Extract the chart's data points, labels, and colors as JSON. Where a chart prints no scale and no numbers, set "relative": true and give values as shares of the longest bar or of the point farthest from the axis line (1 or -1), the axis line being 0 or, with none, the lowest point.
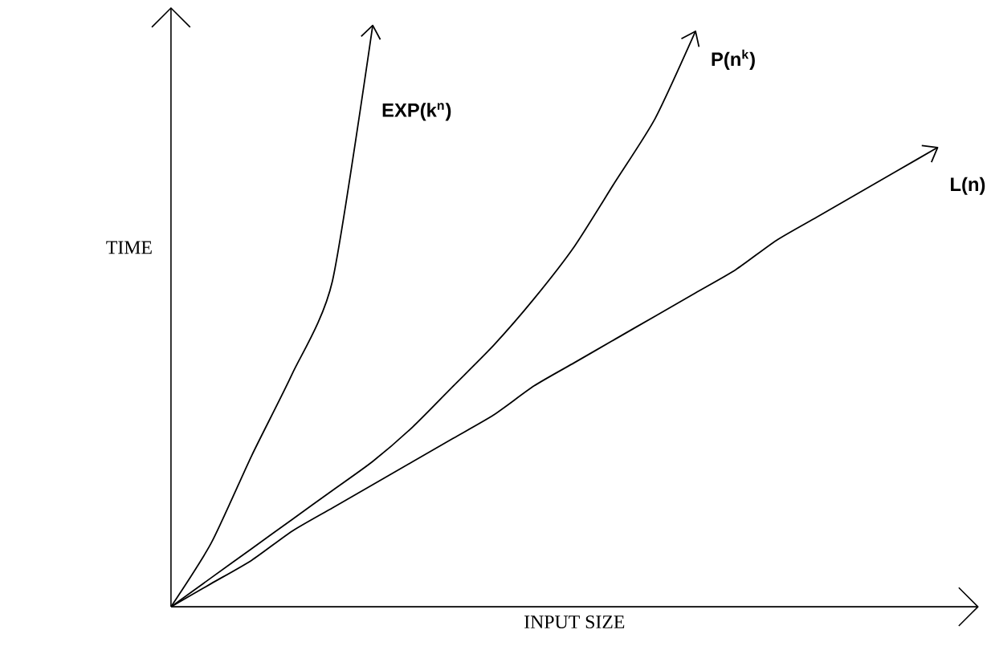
{
  "chart_data": {
    "type": "line",
    "relative": true,
    "xlabel": "INPUT SIZE",
    "ylabel": "TIME",
    "line_style": "solid",
    "categories": [
      null,
      null,
      null,
      null,
      null,
      null,
      null,
      null,
      null,
      null,
      null,
      null,
      null,
      null,
      null,
      null,
      null,
      null,
      null,
      null,
      null
    ],
    "series": [
      {
        "name": "EXP(k$^{n}$)",
        "color": "#000000",
        "values": [
          0,
          0.11,
          0.26,
          0.4,
          0.56,
          1.0,
          null,
          null,
          null,
          null,
          null,
          null,
          null,
          null,
          null,
          null,
          null,
          null,
          null,
          null,
          null
        ]
      },
      {
        "name": "P(n$^{k}$)",
        "color": "#000000",
        "values": [
          0,
          0.05,
          0.1,
          0.15,
          0.2,
          0.25,
          0.31,
          0.38,
          0.45,
          0.53,
          0.62,
          0.73,
          0.84,
          0.99,
          null,
          null,
          null,
          null,
          null,
          null,
          null
        ]
      },
      {
        "name": "L(n)",
        "color": "#000000",
        "values": [
          0,
          0.04,
          0.08,
          0.13,
          0.17,
          0.21,
          0.25,
          0.29,
          0.33,
          0.38,
          0.42,
          0.46,
          0.5,
          0.54,
          0.58,
          0.63,
          0.67,
          0.71,
          0.75,
          0.79,
          null
        ]
      }
    ]
  }
}
